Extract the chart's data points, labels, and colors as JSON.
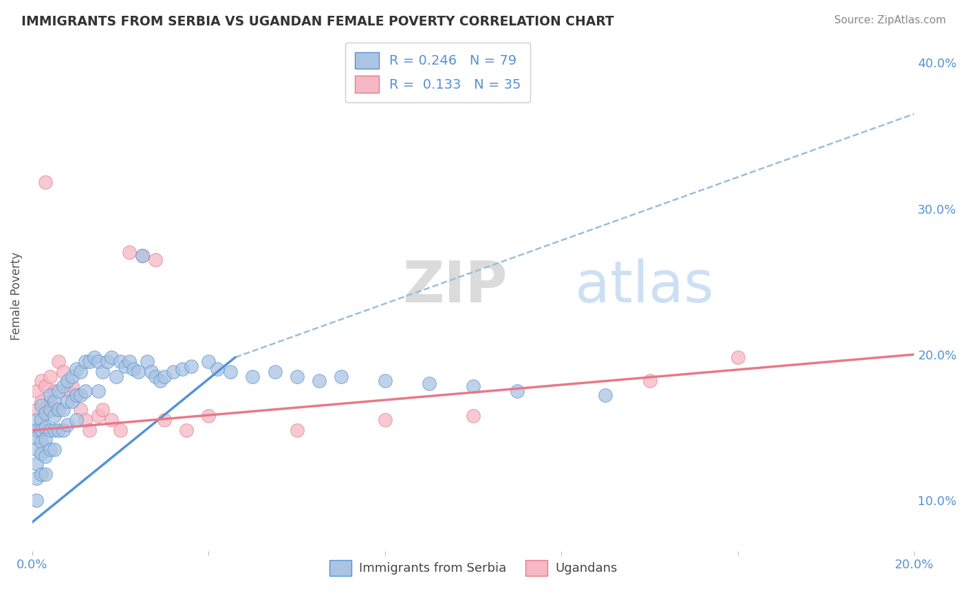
{
  "title": "IMMIGRANTS FROM SERBIA VS UGANDAN FEMALE POVERTY CORRELATION CHART",
  "source": "Source: ZipAtlas.com",
  "ylabel": "Female Poverty",
  "ylabel_right_ticks": [
    "10.0%",
    "20.0%",
    "30.0%",
    "40.0%"
  ],
  "ylabel_right_vals": [
    0.1,
    0.2,
    0.3,
    0.4
  ],
  "xlim": [
    0.0,
    0.2
  ],
  "ylim": [
    0.065,
    0.415
  ],
  "series1_label": "Immigrants from Serbia",
  "series2_label": "Ugandans",
  "series1_R": "0.246",
  "series1_N": "79",
  "series2_R": "0.133",
  "series2_N": "35",
  "series1_color": "#aac4e2",
  "series2_color": "#f5b8c4",
  "series1_line_color": "#5592d4",
  "series2_line_color": "#e8788a",
  "trend_dash_color": "#99bedd",
  "background_color": "#ffffff",
  "watermark": "ZIPatlas",
  "series1_x": [
    0.001,
    0.001,
    0.001,
    0.001,
    0.001,
    0.001,
    0.001,
    0.002,
    0.002,
    0.002,
    0.002,
    0.002,
    0.002,
    0.003,
    0.003,
    0.003,
    0.003,
    0.003,
    0.004,
    0.004,
    0.004,
    0.004,
    0.005,
    0.005,
    0.005,
    0.005,
    0.006,
    0.006,
    0.006,
    0.007,
    0.007,
    0.007,
    0.008,
    0.008,
    0.008,
    0.009,
    0.009,
    0.01,
    0.01,
    0.01,
    0.011,
    0.011,
    0.012,
    0.012,
    0.013,
    0.014,
    0.015,
    0.015,
    0.016,
    0.017,
    0.018,
    0.019,
    0.02,
    0.021,
    0.022,
    0.023,
    0.024,
    0.025,
    0.026,
    0.027,
    0.028,
    0.029,
    0.03,
    0.032,
    0.034,
    0.036,
    0.04,
    0.042,
    0.045,
    0.05,
    0.055,
    0.06,
    0.065,
    0.07,
    0.08,
    0.09,
    0.1,
    0.11,
    0.13
  ],
  "series1_y": [
    0.155,
    0.148,
    0.143,
    0.135,
    0.125,
    0.115,
    0.1,
    0.165,
    0.155,
    0.148,
    0.14,
    0.132,
    0.118,
    0.16,
    0.15,
    0.142,
    0.13,
    0.118,
    0.172,
    0.162,
    0.148,
    0.135,
    0.168,
    0.158,
    0.148,
    0.135,
    0.175,
    0.162,
    0.148,
    0.178,
    0.162,
    0.148,
    0.182,
    0.168,
    0.152,
    0.185,
    0.168,
    0.19,
    0.172,
    0.155,
    0.188,
    0.172,
    0.195,
    0.175,
    0.195,
    0.198,
    0.195,
    0.175,
    0.188,
    0.195,
    0.198,
    0.185,
    0.195,
    0.192,
    0.195,
    0.19,
    0.188,
    0.268,
    0.195,
    0.188,
    0.185,
    0.182,
    0.185,
    0.188,
    0.19,
    0.192,
    0.195,
    0.19,
    0.188,
    0.185,
    0.188,
    0.185,
    0.182,
    0.185,
    0.182,
    0.18,
    0.178,
    0.175,
    0.172
  ],
  "series2_x": [
    0.001,
    0.001,
    0.001,
    0.002,
    0.002,
    0.003,
    0.003,
    0.003,
    0.004,
    0.004,
    0.005,
    0.005,
    0.006,
    0.007,
    0.008,
    0.009,
    0.01,
    0.011,
    0.012,
    0.013,
    0.015,
    0.016,
    0.018,
    0.02,
    0.022,
    0.025,
    0.028,
    0.03,
    0.035,
    0.04,
    0.06,
    0.08,
    0.1,
    0.14,
    0.16
  ],
  "series2_y": [
    0.175,
    0.162,
    0.148,
    0.182,
    0.168,
    0.318,
    0.178,
    0.162,
    0.185,
    0.168,
    0.175,
    0.162,
    0.195,
    0.188,
    0.175,
    0.178,
    0.172,
    0.162,
    0.155,
    0.148,
    0.158,
    0.162,
    0.155,
    0.148,
    0.27,
    0.268,
    0.265,
    0.155,
    0.148,
    0.158,
    0.148,
    0.155,
    0.158,
    0.182,
    0.198
  ],
  "blue_line_x0": 0.0,
  "blue_line_y0": 0.085,
  "blue_line_x1": 0.046,
  "blue_line_y1": 0.198,
  "pink_line_x0": 0.0,
  "pink_line_x1": 0.2,
  "pink_line_y0": 0.148,
  "pink_line_y1": 0.2,
  "dash_line_x0": 0.046,
  "dash_line_y0": 0.198,
  "dash_line_x1": 0.2,
  "dash_line_y1": 0.365
}
